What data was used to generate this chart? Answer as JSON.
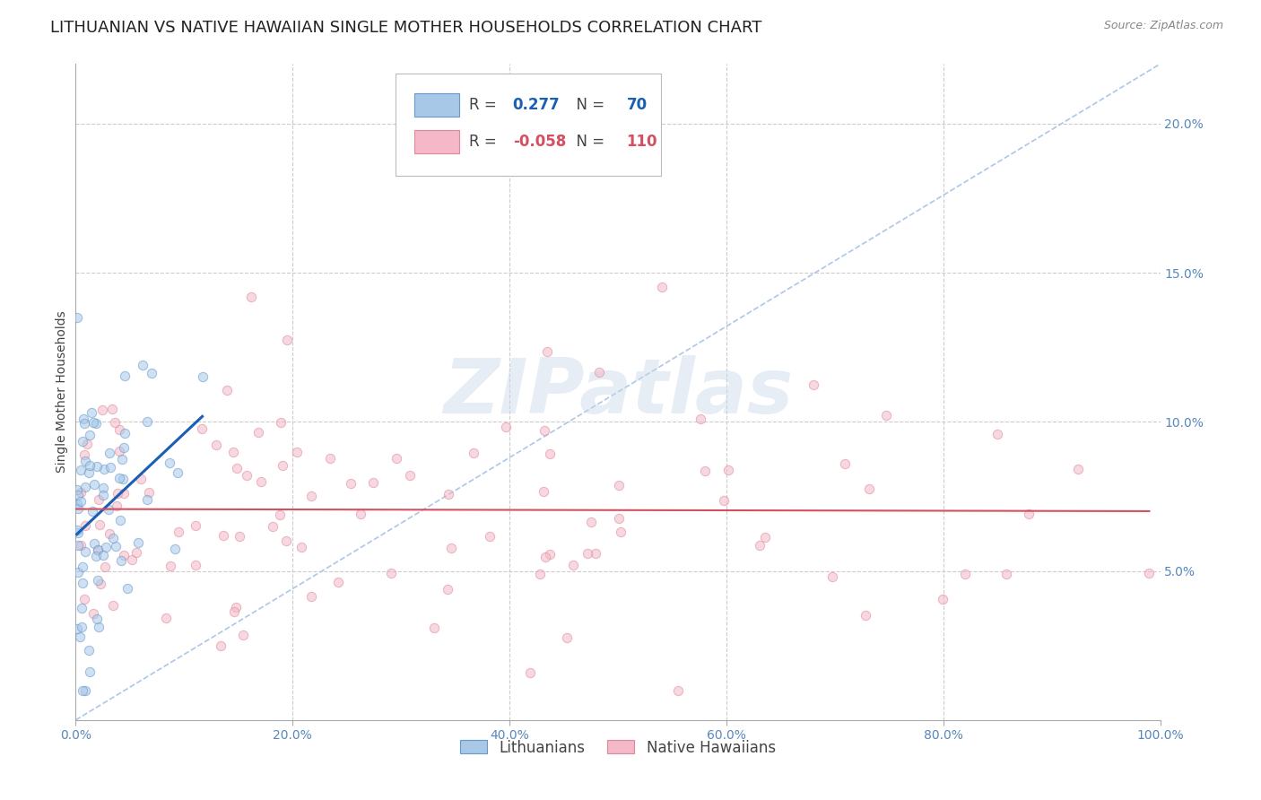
{
  "title": "LITHUANIAN VS NATIVE HAWAIIAN SINGLE MOTHER HOUSEHOLDS CORRELATION CHART",
  "source": "Source: ZipAtlas.com",
  "ylabel": "Single Mother Households",
  "watermark": "ZIPatlas",
  "bottom_legend": [
    "Lithuanians",
    "Native Hawaiians"
  ],
  "xlim": [
    0,
    1.0
  ],
  "ylim": [
    0,
    0.22
  ],
  "xticks": [
    0.0,
    0.2,
    0.4,
    0.6,
    0.8,
    1.0
  ],
  "yticks": [
    0.05,
    0.1,
    0.15,
    0.2
  ],
  "background_color": "#ffffff",
  "grid_color": "#cccccc",
  "title_fontsize": 13,
  "axis_fontsize": 10,
  "tick_fontsize": 10,
  "scatter_alpha": 0.55,
  "scatter_size": 55,
  "blue_color": "#a8c8e8",
  "blue_edge_color": "#6699cc",
  "pink_color": "#f4b8c8",
  "pink_edge_color": "#e08898",
  "blue_line_color": "#1a5fb4",
  "pink_line_color": "#d45060",
  "dashed_line_color": "#aec6e8",
  "seed": 99,
  "n_blue": 70,
  "n_pink": 110,
  "blue_R": 0.277,
  "pink_R": -0.058,
  "legend_blue_R": "0.277",
  "legend_blue_N": "70",
  "legend_pink_R": "-0.058",
  "legend_pink_N": "110"
}
